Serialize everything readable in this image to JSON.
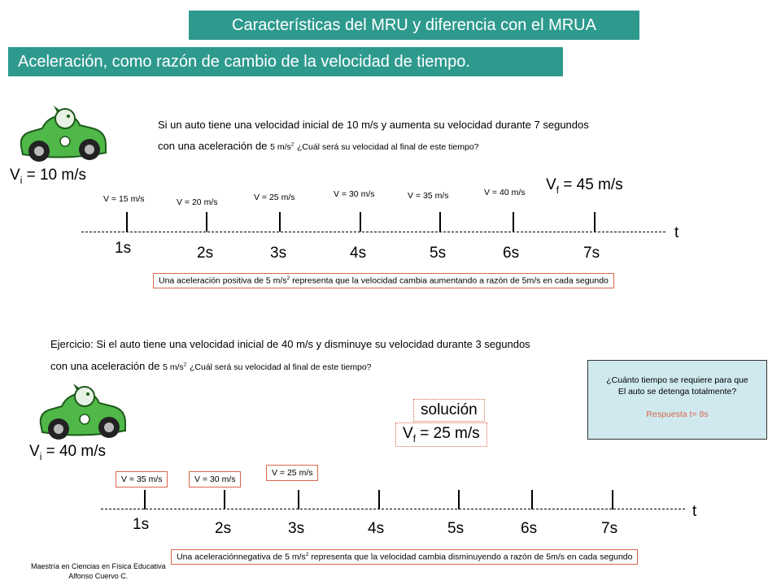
{
  "title": "Características del MRU y diferencia con el MRUA",
  "subtitle": "Aceleración, como razón de cambio de la velocidad de tiempo.",
  "section1": {
    "question_line1": "Si un auto tiene una velocidad inicial de 10 m/s y aumenta su velocidad durante 7 segundos",
    "question_line2_a": "con una aceleración de",
    "question_line2_unit": "5 m/s",
    "question_line2_b": "¿Cuál será su velocidad al final de este tiempo?",
    "vi_prefix": "V",
    "vi_sub": "i",
    "vi_value": " = 10 m/s",
    "vf_prefix": "V",
    "vf_sub": "f",
    "vf_value": " = 45 m/s",
    "velocities": [
      "V = 15 m/s",
      "V = 20 m/s",
      "V = 25 m/s",
      "V = 30 m/s",
      "V = 35 m/s",
      "V = 40 m/s"
    ],
    "times": [
      "1s",
      "2s",
      "3s",
      "4s",
      "5s",
      "6s",
      "7s"
    ],
    "axis_label": "t",
    "note_a": "Una aceleración positiva  de 5 m/s",
    "note_b": " representa que la velocidad cambia aumentando a razón de 5m/s en cada segundo"
  },
  "section2": {
    "question_line1": "Ejercicio: Si el auto tiene una velocidad inicial de 40 m/s y disminuye su velocidad durante 3 segundos",
    "question_line2_a": "con una aceleración de",
    "question_line2_unit": "5 m/s",
    "question_line2_b": "¿Cuál será su velocidad al final de este tiempo?",
    "vi_prefix": "V",
    "vi_sub": "i",
    "vi_value": " = 40 m/s",
    "solution_label": "solución",
    "vf_prefix": "V",
    "vf_sub": "f",
    "vf_value": " = 25 m/s",
    "velocities": [
      "V = 35 m/s",
      "V = 30 m/s",
      "V = 25 m/s"
    ],
    "times": [
      "1s",
      "2s",
      "3s",
      "4s",
      "5s",
      "6s",
      "7s"
    ],
    "axis_label": "t",
    "note_a": "Una aceleraciónnegativa  de 5 m/s",
    "note_b": " representa que la velocidad cambia disminuyendo a razón de 5m/s en cada segundo",
    "box_line1": "¿Cuánto tiempo se requiere para que",
    "box_line2": "El auto se detenga totalmente?",
    "box_answer": "Respuesta t= 8s"
  },
  "exponent": "2",
  "footer_line1": "Maestría en Ciencias en Física Educativa",
  "footer_line2": "Alfonso Cuervo C.",
  "colors": {
    "header_bg": "#2e9a8e",
    "note_border": "#d9664e",
    "box_bg": "#cfe9ee",
    "car_green": "#4fb848"
  },
  "icons": [
    "race-car-icon"
  ]
}
